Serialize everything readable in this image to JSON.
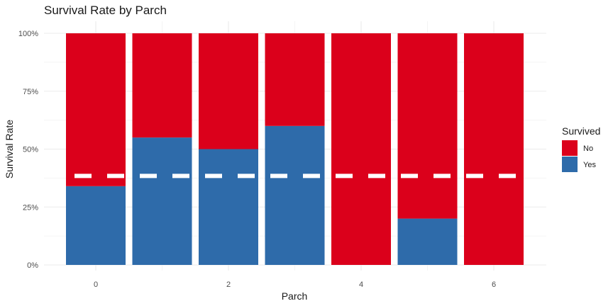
{
  "chart_data": {
    "type": "bar",
    "stacked": true,
    "title": "Survival Rate by Parch",
    "xlabel": "Parch",
    "ylabel": "Survival Rate",
    "categories": [
      0,
      1,
      2,
      3,
      4,
      5,
      6
    ],
    "x_ticks": [
      "0",
      "2",
      "4",
      "6"
    ],
    "x_tick_values": [
      0,
      2,
      4,
      6
    ],
    "ylim": [
      0,
      1
    ],
    "y_ticks": [
      "0%",
      "25%",
      "50%",
      "75%",
      "100%"
    ],
    "y_tick_values": [
      0,
      0.25,
      0.5,
      0.75,
      1
    ],
    "series": [
      {
        "name": "Yes",
        "color": "#2E6BAA",
        "values": [
          0.34,
          0.55,
          0.5,
          0.6,
          0.0,
          0.2,
          0.0
        ]
      },
      {
        "name": "No",
        "color": "#DB001B",
        "values": [
          0.66,
          0.45,
          0.5,
          0.4,
          1.0,
          0.8,
          1.0
        ]
      }
    ],
    "reference_line": {
      "value": 0.384,
      "style": "dashed",
      "color": "#ffffff"
    },
    "legend": {
      "title": "Survived",
      "position": "right",
      "entries": [
        "No",
        "Yes"
      ]
    },
    "grid": true
  }
}
